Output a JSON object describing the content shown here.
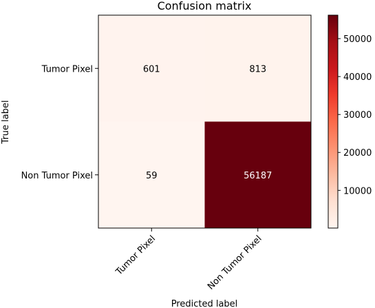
{
  "chart_data": {
    "type": "heatmap",
    "title": "Confusion matrix",
    "xlabel": "Predicted label",
    "ylabel": "True label",
    "x_categories": [
      "Tumor Pixel",
      "Non Tumor Pixel"
    ],
    "y_categories": [
      "Tumor Pixel",
      "Non Tumor Pixel"
    ],
    "values": [
      [
        601,
        813
      ],
      [
        59,
        56187
      ]
    ],
    "colormap": "Reds",
    "colorbar": {
      "min": 59,
      "max": 56187,
      "ticks": [
        10000,
        20000,
        30000,
        40000,
        50000
      ],
      "tick_labels": [
        "10000",
        "20000",
        "30000",
        "40000",
        "50000"
      ]
    },
    "colors": {
      "low": "#fff5f0",
      "high": "#67000d",
      "text_light": "#ffffff",
      "text_dark": "#000000"
    }
  }
}
